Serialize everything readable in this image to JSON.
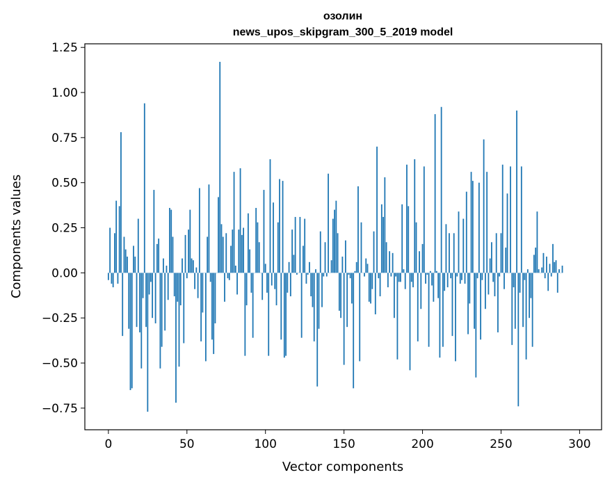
{
  "chart_data": {
    "type": "bar",
    "title": "озолин",
    "subtitle": "news_upos_skipgram_300_5_2019 model",
    "xlabel": "Vector components",
    "ylabel": "Components values",
    "xlim": [
      -15,
      314
    ],
    "ylim": [
      -0.87,
      1.27
    ],
    "x_ticks": [
      0,
      50,
      100,
      150,
      200,
      250,
      300
    ],
    "x_tick_labels": [
      "0",
      "50",
      "100",
      "150",
      "200",
      "250",
      "300"
    ],
    "y_ticks": [
      -0.75,
      -0.5,
      -0.25,
      0.0,
      0.25,
      0.5,
      0.75,
      1.0,
      1.25
    ],
    "y_tick_labels": [
      "−0.75",
      "−0.50",
      "−0.25",
      "0.00",
      "0.25",
      "0.50",
      "0.75",
      "1.00",
      "1.25"
    ],
    "grid": false,
    "bar_color": "#1f77b4",
    "values": [
      -0.04,
      0.25,
      -0.06,
      -0.08,
      0.22,
      0.4,
      -0.06,
      0.37,
      0.78,
      -0.35,
      0.2,
      0.13,
      0.09,
      -0.31,
      -0.65,
      -0.64,
      0.15,
      0.09,
      -0.3,
      0.3,
      -0.33,
      -0.53,
      -0.14,
      0.94,
      -0.3,
      -0.77,
      -0.12,
      -0.05,
      -0.25,
      0.46,
      -0.28,
      0.16,
      0.19,
      -0.53,
      -0.41,
      0.08,
      -0.32,
      0.04,
      -0.15,
      0.36,
      0.35,
      0.2,
      -0.13,
      -0.72,
      -0.16,
      -0.52,
      -0.18,
      0.08,
      -0.39,
      0.21,
      -0.03,
      0.24,
      0.35,
      0.08,
      0.07,
      -0.09,
      0.03,
      -0.14,
      0.47,
      -0.38,
      -0.22,
      0.0,
      -0.49,
      0.2,
      0.49,
      -0.05,
      -0.37,
      -0.45,
      -0.28,
      0.0,
      0.42,
      1.17,
      0.27,
      0.2,
      -0.16,
      0.22,
      -0.03,
      -0.04,
      0.15,
      0.24,
      0.56,
      0.04,
      -0.12,
      0.24,
      0.58,
      0.21,
      0.25,
      -0.46,
      -0.18,
      0.33,
      0.13,
      -0.11,
      -0.36,
      0.0,
      0.36,
      0.28,
      0.17,
      0.0,
      -0.15,
      0.46,
      0.05,
      -0.11,
      -0.46,
      0.63,
      -0.07,
      0.39,
      -0.09,
      -0.18,
      0.28,
      0.52,
      -0.37,
      0.51,
      -0.47,
      -0.46,
      -0.11,
      0.06,
      -0.13,
      0.24,
      0.1,
      0.31,
      -0.01,
      0.0,
      0.31,
      -0.36,
      0.15,
      0.3,
      -0.06,
      -0.01,
      0.06,
      -0.13,
      -0.19,
      -0.38,
      0.02,
      -0.63,
      -0.31,
      0.23,
      -0.19,
      -0.02,
      0.17,
      -0.02,
      0.55,
      0.0,
      0.07,
      0.3,
      0.35,
      0.4,
      0.22,
      -0.21,
      -0.25,
      0.09,
      -0.51,
      0.18,
      -0.3,
      -0.01,
      -0.03,
      -0.17,
      -0.64,
      0.01,
      0.06,
      0.48,
      -0.49,
      0.28,
      0.0,
      -0.02,
      0.08,
      0.05,
      -0.16,
      -0.17,
      -0.09,
      0.23,
      -0.23,
      0.7,
      -0.03,
      -0.13,
      0.38,
      0.31,
      0.53,
      0.17,
      -0.08,
      0.12,
      -0.02,
      0.11,
      -0.25,
      -0.02,
      -0.48,
      -0.05,
      -0.05,
      0.38,
      0.02,
      -0.09,
      0.6,
      0.37,
      -0.54,
      -0.05,
      -0.08,
      0.63,
      0.28,
      -0.38,
      0.12,
      -0.2,
      0.16,
      0.59,
      -0.06,
      -0.01,
      -0.41,
      0.01,
      -0.07,
      -0.16,
      0.88,
      0.01,
      -0.14,
      -0.47,
      0.92,
      -0.41,
      -0.1,
      0.27,
      -0.08,
      0.22,
      -0.03,
      -0.35,
      0.22,
      -0.49,
      -0.02,
      0.34,
      -0.06,
      -0.04,
      0.3,
      -0.06,
      0.45,
      -0.34,
      -0.17,
      0.56,
      0.51,
      -0.31,
      -0.58,
      -0.03,
      0.5,
      -0.37,
      -0.04,
      0.74,
      -0.2,
      0.56,
      -0.12,
      0.08,
      0.17,
      -0.05,
      -0.13,
      0.22,
      -0.33,
      -0.02,
      0.22,
      0.6,
      -0.09,
      0.14,
      0.44,
      0.0,
      0.59,
      -0.4,
      -0.08,
      -0.31,
      0.9,
      -0.74,
      -0.11,
      0.59,
      -0.3,
      -0.04,
      -0.48,
      0.02,
      -0.25,
      -0.14,
      -0.41,
      0.1,
      0.14,
      0.34,
      0.02,
      0.0,
      0.03,
      0.11,
      -0.03,
      0.09,
      -0.1,
      0.05,
      -0.02,
      0.16,
      0.06,
      0.07,
      -0.11,
      0.02,
      0.0,
      0.04
    ]
  }
}
